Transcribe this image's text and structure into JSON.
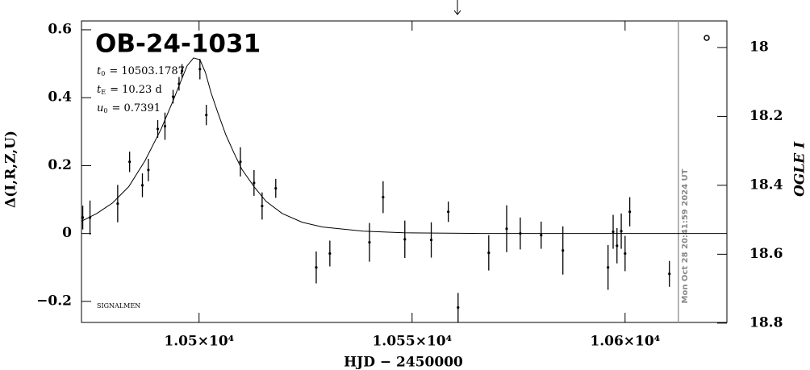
{
  "chart_data": {
    "type": "scatter",
    "title": "OB-24-1031",
    "xlabel": "HJD − 2450000",
    "ylabel": "Δ(I,R,Z,U)",
    "y2label": "OGLE I",
    "annotations": [
      {
        "symbol": "t",
        "subscript": "0",
        "text": "= 10503.1787"
      },
      {
        "symbol": "t",
        "subscript": "E",
        "text": "= 10.23 d"
      },
      {
        "symbol": "u",
        "subscript": "0",
        "text": "= 0.7391"
      }
    ],
    "footnote": "SIGNALMEN",
    "timestamp": "Mon Oct 28 20:41:59 2024 UT",
    "timestamp_x": 10612.5,
    "xlim": [
      10472.4,
      10623.9
    ],
    "xticks": [
      {
        "value": 10500,
        "label": "1.05×10⁴"
      },
      {
        "value": 10550,
        "label": "1.055×10⁴"
      },
      {
        "value": 10600,
        "label": "1.06×10⁴"
      }
    ],
    "ylim": [
      -0.262,
      0.626
    ],
    "yticks": [
      {
        "value": -0.2,
        "label": "−0.2"
      },
      0,
      0.2,
      0.4,
      0.6
    ],
    "y2lim": [
      18.798,
      17.923
    ],
    "y2ticks": [
      18,
      18.2,
      18.4,
      18.6,
      18.8
    ],
    "series": [
      {
        "color": "#000000",
        "x": [
          10472.7,
          10474.4,
          10480.9,
          10483.7,
          10486.7,
          10488.1,
          10490.3,
          10492.0,
          10493.9,
          10495.3,
          10496.0,
          10500.2,
          10501.7,
          10509.7,
          10512.9,
          10514.8,
          10518.0,
          10527.5,
          10530.7,
          10540.0,
          10543.2,
          10548.3,
          10554.5,
          10558.5,
          10560.8,
          10568.0,
          10572.2,
          10575.4,
          10580.3,
          10585.4,
          10596.0,
          10597.2,
          10598.1,
          10599.1,
          10600.0,
          10601.1,
          10610.4
        ],
        "values": [
          0.047,
          0.047,
          0.088,
          0.211,
          0.142,
          0.187,
          0.308,
          0.316,
          0.403,
          0.441,
          0.479,
          0.484,
          0.349,
          0.211,
          0.149,
          0.081,
          0.133,
          -0.1,
          -0.059,
          -0.026,
          0.107,
          -0.017,
          -0.019,
          0.064,
          -0.218,
          -0.057,
          0.014,
          0,
          -0.005,
          -0.05,
          -0.1,
          0.005,
          -0.036,
          0.007,
          -0.059,
          0.064,
          -0.119
        ],
        "errors": [
          0.035,
          0.05,
          0.055,
          0.03,
          0.035,
          0.033,
          0.026,
          0.04,
          0.02,
          0.02,
          0.02,
          0.03,
          0.03,
          0.043,
          0.038,
          0.04,
          0.028,
          0.047,
          0.038,
          0.057,
          0.047,
          0.055,
          0.052,
          0.03,
          0.043,
          0.052,
          0.069,
          0.047,
          0.04,
          0.071,
          0.066,
          0.05,
          0.052,
          0.052,
          0.052,
          0.043,
          0.038
        ]
      }
    ],
    "model": {
      "color": "#000000",
      "x": [
        10472.4,
        10476.0,
        10479.7,
        10483.5,
        10487.3,
        10491.1,
        10493.9,
        10495.8,
        10497.2,
        10498.7,
        10500.2,
        10501.5,
        10502.8,
        10504.4,
        10506.3,
        10508.2,
        10510.0,
        10512.9,
        10515.7,
        10519.5,
        10524.2,
        10529.0,
        10538.5,
        10548.0,
        10566.9,
        10623.9
      ],
      "values": [
        0.036,
        0.059,
        0.09,
        0.138,
        0.214,
        0.308,
        0.391,
        0.451,
        0.494,
        0.517,
        0.512,
        0.474,
        0.415,
        0.356,
        0.29,
        0.237,
        0.19,
        0.138,
        0.095,
        0.059,
        0.033,
        0.019,
        0.007,
        0.002,
        0,
        0
      ]
    }
  }
}
